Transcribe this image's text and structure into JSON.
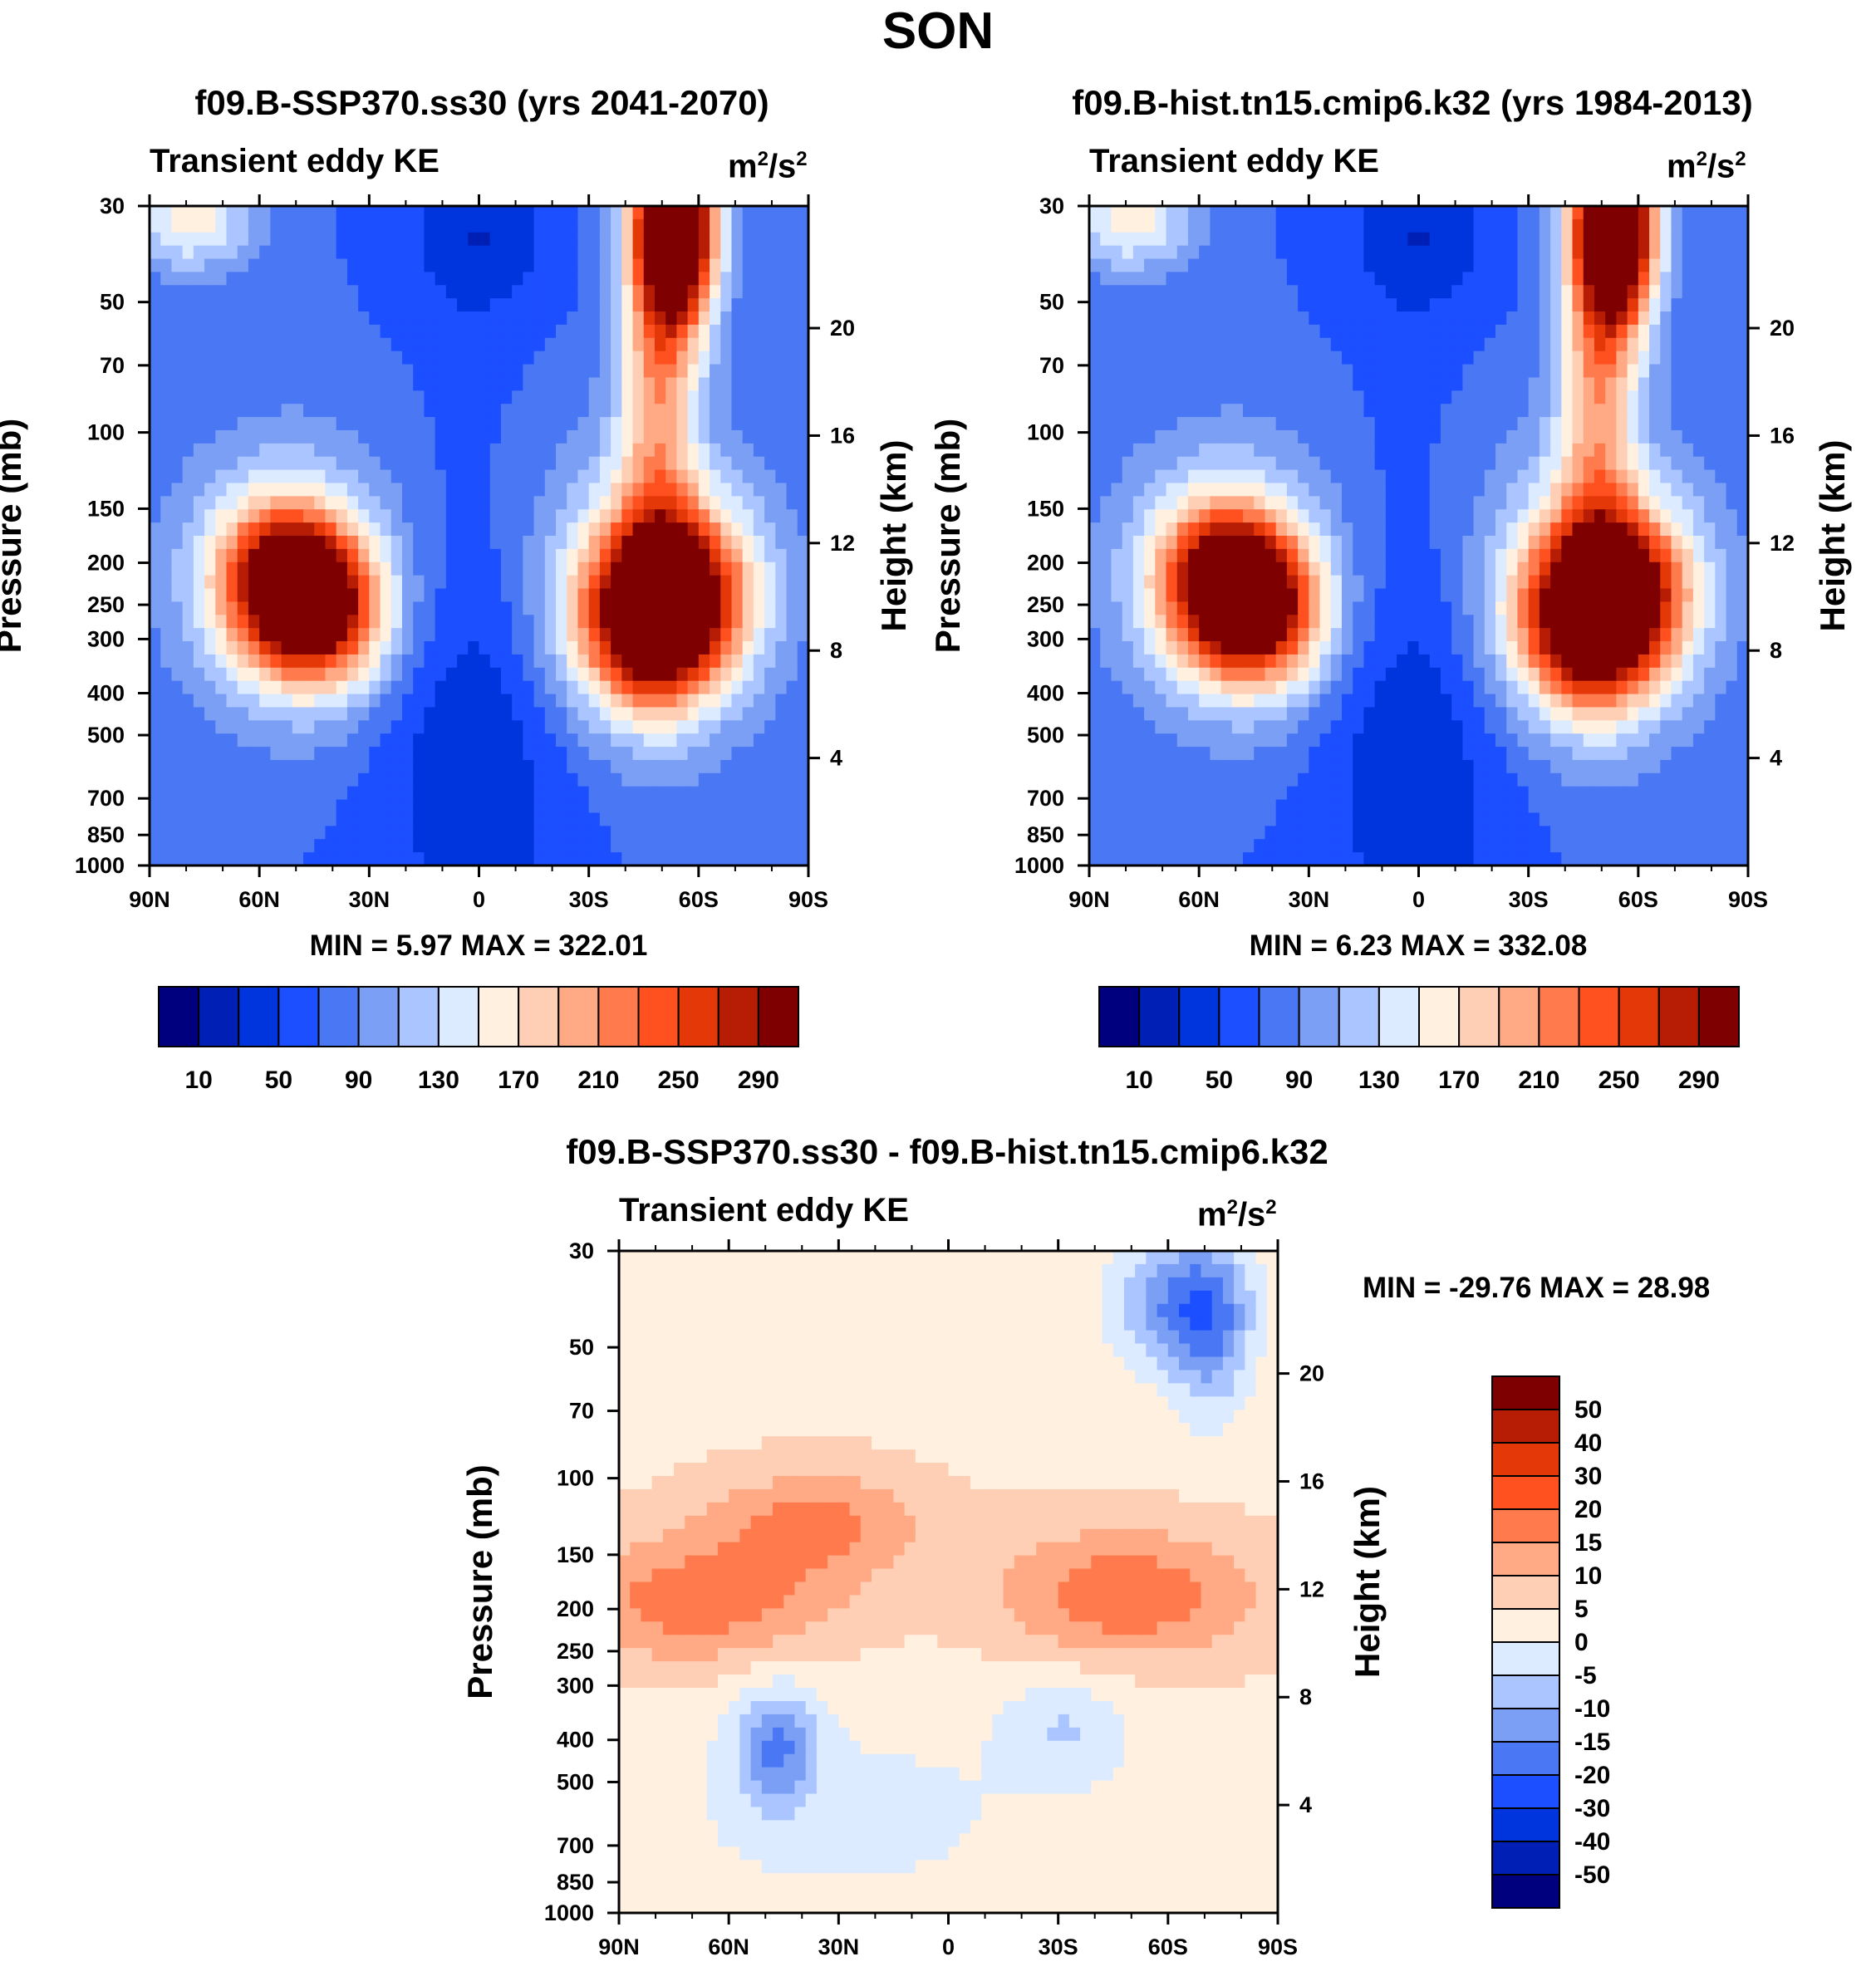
{
  "figure": {
    "season_title": "SON",
    "panel_label": "Transient eddy KE",
    "units_base": "m",
    "units_exp1": "2",
    "units_mid": "/s",
    "units_exp2": "2",
    "left_axis_title": "Pressure (mb)",
    "right_axis_title": "Height (km)"
  },
  "chart_data": [
    {
      "type": "heatmap",
      "title": "f09.B-SSP370.ss30 (yrs 2041-2070)",
      "subtitle": "Transient eddy KE",
      "units": "m2/s2",
      "xlabel": "",
      "ylabel": "Pressure (mb)",
      "y2label": "Height (km)",
      "x_ticks": [
        "90N",
        "60N",
        "30N",
        "0",
        "30S",
        "60S",
        "90S"
      ],
      "y_ticks": [
        "30",
        "50",
        "70",
        "100",
        "150",
        "200",
        "250",
        "300",
        "400",
        "500",
        "700",
        "850",
        "1000"
      ],
      "y2_ticks": [
        "20",
        "16",
        "12",
        "8",
        "4"
      ],
      "min_label": "MIN =",
      "min_value": "5.97",
      "max_label": "MAX =",
      "max_value": "322.01",
      "colorbar_labels": [
        "10",
        "50",
        "90",
        "130",
        "170",
        "210",
        "250",
        "290"
      ],
      "colors": [
        "#00007f",
        "#0020b5",
        "#0034dd",
        "#1c4fff",
        "#4a78f4",
        "#7a9ff4",
        "#aac5ff",
        "#dcebff",
        "#fff0e0",
        "#ffcfb5",
        "#ffaa85",
        "#ff7a4d",
        "#ff5020",
        "#e53808",
        "#b71c05",
        "#7f0000"
      ]
    },
    {
      "type": "heatmap",
      "title": "f09.B-hist.tn15.cmip6.k32 (yrs 1984-2013)",
      "subtitle": "Transient eddy KE",
      "units": "m2/s2",
      "xlabel": "",
      "ylabel": "Pressure (mb)",
      "y2label": "Height (km)",
      "x_ticks": [
        "90N",
        "60N",
        "30N",
        "0",
        "30S",
        "60S",
        "90S"
      ],
      "y_ticks": [
        "30",
        "50",
        "70",
        "100",
        "150",
        "200",
        "250",
        "300",
        "400",
        "500",
        "700",
        "850",
        "1000"
      ],
      "y2_ticks": [
        "20",
        "16",
        "12",
        "8",
        "4"
      ],
      "min_label": "MIN =",
      "min_value": "6.23",
      "max_label": "MAX =",
      "max_value": "332.08",
      "colorbar_labels": [
        "10",
        "50",
        "90",
        "130",
        "170",
        "210",
        "250",
        "290"
      ],
      "colors": [
        "#00007f",
        "#0020b5",
        "#0034dd",
        "#1c4fff",
        "#4a78f4",
        "#7a9ff4",
        "#aac5ff",
        "#dcebff",
        "#fff0e0",
        "#ffcfb5",
        "#ffaa85",
        "#ff7a4d",
        "#ff5020",
        "#e53808",
        "#b71c05",
        "#7f0000"
      ]
    },
    {
      "type": "heatmap",
      "title": "f09.B-SSP370.ss30 - f09.B-hist.tn15.cmip6.k32",
      "subtitle": "Transient eddy KE",
      "units": "m2/s2",
      "xlabel": "",
      "ylabel": "Pressure (mb)",
      "y2label": "Height (km)",
      "x_ticks": [
        "90N",
        "60N",
        "30N",
        "0",
        "30S",
        "60S",
        "90S"
      ],
      "y_ticks": [
        "30",
        "50",
        "70",
        "100",
        "150",
        "200",
        "250",
        "300",
        "400",
        "500",
        "700",
        "850",
        "1000"
      ],
      "y2_ticks": [
        "20",
        "16",
        "12",
        "8",
        "4"
      ],
      "min_label": "MIN =",
      "min_value": "-29.76",
      "max_label": "MAX =",
      "max_value": "28.98",
      "colorbar_labels": [
        "50",
        "40",
        "30",
        "20",
        "15",
        "10",
        "5",
        "0",
        "-5",
        "-10",
        "-15",
        "-20",
        "-30",
        "-40",
        "-50"
      ],
      "colors": [
        "#7f0000",
        "#b71c05",
        "#e53808",
        "#ff5020",
        "#ff7a4d",
        "#ffaa85",
        "#ffcfb5",
        "#fff0e0",
        "#dcebff",
        "#aac5ff",
        "#7a9ff4",
        "#4a78f4",
        "#1c4fff",
        "#0034dd",
        "#0020b5",
        "#00007f"
      ]
    }
  ]
}
